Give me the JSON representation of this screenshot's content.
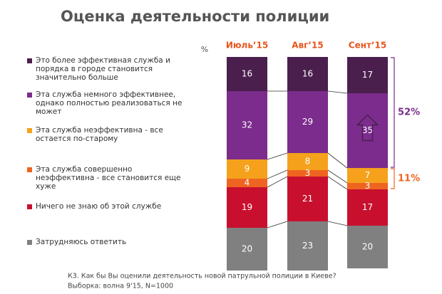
{
  "chart_data": {
    "type": "stacked-bar",
    "title": "Оценка деятельности полиции",
    "unit_label": "%",
    "categories": [
      "Июль’15",
      "Авг’15",
      "Сент’15"
    ],
    "series": [
      {
        "name": "Это более эффективная служба и порядка в городе становится значительно больше",
        "color": "#4a1f4d",
        "values": [
          16,
          16,
          17
        ]
      },
      {
        "name": "Эта служба немного эффективнее, однако полностью реализоваться не может",
        "color": "#7b2c8c",
        "values": [
          32,
          29,
          35
        ]
      },
      {
        "name": "Эта служба неэффективна - все остается по-старому",
        "color": "#f5a11c",
        "values": [
          9,
          8,
          7
        ]
      },
      {
        "name": "Эта служба совершенно неэффективна - все становится еще хуже",
        "color": "#ef6420",
        "values": [
          4,
          3,
          3
        ]
      },
      {
        "name": "Ничего не знаю об этой службе",
        "color": "#c8102e",
        "values": [
          19,
          21,
          17
        ]
      },
      {
        "name": "Затрудняюсь ответить",
        "color": "#808080",
        "values": [
          20,
          23,
          20
        ]
      }
    ],
    "annotations": [
      {
        "text": "52%",
        "color": "#7b2c8c"
      },
      {
        "text": "11%",
        "color": "#ef6420"
      }
    ],
    "footnotes": [
      "К3. Как бы Вы оценили деятельность новой патрульной полиции в Киеве?",
      "Выборка: волна 9'15, N=1000"
    ]
  }
}
